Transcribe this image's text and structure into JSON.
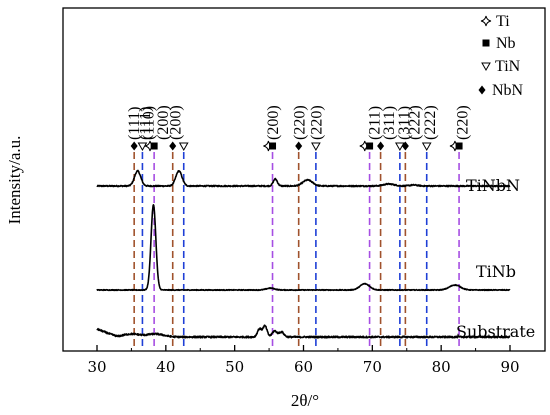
{
  "chart_data": {
    "type": "line",
    "xlabel": "2θ/°",
    "ylabel": "Intensity/a.u.",
    "xlim": [
      30,
      90
    ],
    "xticks": [
      30,
      40,
      50,
      60,
      70,
      80,
      90
    ],
    "legend": {
      "placement": "top-right",
      "entries": [
        {
          "symbol": "Ti",
          "label": "Ti"
        },
        {
          "symbol": "Nb",
          "label": "Nb"
        },
        {
          "symbol": "TiN",
          "label": "TiN"
        },
        {
          "symbol": "NbN",
          "label": "NbN"
        }
      ]
    },
    "reference_lines": [
      {
        "x": 35.4,
        "phase": "NbN",
        "color": "#a0522d"
      },
      {
        "x": 36.6,
        "phase": "TiN",
        "color": "#1f3fd6"
      },
      {
        "x": 38.3,
        "phase": "Nb",
        "color": "#a64ee3"
      },
      {
        "x": 41.0,
        "phase": "NbN",
        "color": "#a0522d"
      },
      {
        "x": 42.6,
        "phase": "TiN",
        "color": "#1f3fd6"
      },
      {
        "x": 55.5,
        "phase": "Nb",
        "color": "#a64ee3"
      },
      {
        "x": 59.3,
        "phase": "NbN",
        "color": "#a0522d"
      },
      {
        "x": 61.8,
        "phase": "TiN",
        "color": "#1f3fd6"
      },
      {
        "x": 69.6,
        "phase": "Nb",
        "color": "#a64ee3"
      },
      {
        "x": 71.2,
        "phase": "NbN",
        "color": "#a0522d"
      },
      {
        "x": 74.0,
        "phase": "TiN",
        "color": "#1f3fd6"
      },
      {
        "x": 74.8,
        "phase": "NbN",
        "color": "#a0522d"
      },
      {
        "x": 77.9,
        "phase": "TiN",
        "color": "#1f3fd6"
      },
      {
        "x": 82.6,
        "phase": "Nb",
        "color": "#a64ee3"
      }
    ],
    "markers": [
      {
        "x": 35.4,
        "symbol": "NbN"
      },
      {
        "x": 36.6,
        "symbol": "TiN"
      },
      {
        "x": 37.7,
        "symbol": "Ti"
      },
      {
        "x": 38.3,
        "symbol": "Nb"
      },
      {
        "x": 41.0,
        "symbol": "NbN"
      },
      {
        "x": 42.6,
        "symbol": "TiN"
      },
      {
        "x": 54.9,
        "symbol": "Ti"
      },
      {
        "x": 55.5,
        "symbol": "Nb"
      },
      {
        "x": 59.3,
        "symbol": "NbN"
      },
      {
        "x": 61.8,
        "symbol": "TiN"
      },
      {
        "x": 68.9,
        "symbol": "Ti"
      },
      {
        "x": 69.6,
        "symbol": "Nb"
      },
      {
        "x": 71.2,
        "symbol": "NbN"
      },
      {
        "x": 74.0,
        "symbol": "TiN"
      },
      {
        "x": 74.8,
        "symbol": "NbN"
      },
      {
        "x": 77.9,
        "symbol": "TiN"
      },
      {
        "x": 82.0,
        "symbol": "Ti"
      },
      {
        "x": 82.6,
        "symbol": "Nb"
      }
    ],
    "peak_labels": [
      {
        "x": 35.4,
        "text": "(111)"
      },
      {
        "x": 37.0,
        "text": "(111)"
      },
      {
        "x": 37.5,
        "text": "(110)"
      },
      {
        "x": 39.6,
        "text": "(200)"
      },
      {
        "x": 41.4,
        "text": "(200)"
      },
      {
        "x": 55.6,
        "text": "(200)"
      },
      {
        "x": 59.4,
        "text": "(220)"
      },
      {
        "x": 61.9,
        "text": "(220)"
      },
      {
        "x": 70.3,
        "text": "(211)"
      },
      {
        "x": 72.4,
        "text": "(311)"
      },
      {
        "x": 74.6,
        "text": "(311)"
      },
      {
        "x": 76.1,
        "text": "(222)"
      },
      {
        "x": 78.4,
        "text": "(222)"
      },
      {
        "x": 83.1,
        "text": "(220)"
      }
    ],
    "series": [
      {
        "name": "TiNbN",
        "baseline": 0.0,
        "noise": 0.6,
        "peaks": [
          {
            "x": 35.9,
            "height": 15,
            "width": 0.45
          },
          {
            "x": 41.9,
            "height": 15,
            "width": 0.45
          },
          {
            "x": 55.9,
            "height": 7,
            "width": 0.3
          },
          {
            "x": 60.6,
            "height": 6,
            "width": 0.7
          },
          {
            "x": 72.4,
            "height": 2,
            "width": 0.8
          },
          {
            "x": 76.0,
            "height": 1,
            "width": 0.6
          }
        ]
      },
      {
        "name": "TiNb",
        "baseline": 0.0,
        "noise": 0.3,
        "peaks": [
          {
            "x": 38.2,
            "height": 68,
            "width": 0.35
          },
          {
            "x": 55.2,
            "height": 1.5,
            "width": 0.6
          },
          {
            "x": 68.9,
            "height": 5,
            "width": 0.7
          },
          {
            "x": 82.0,
            "height": 4,
            "width": 0.8
          }
        ]
      },
      {
        "name": "Substrate",
        "baseline": 0.0,
        "noise": 0.8,
        "start_step": 8,
        "peaks": [
          {
            "x": 35.0,
            "height": 3,
            "width": 1.2
          },
          {
            "x": 38.5,
            "height": 3,
            "width": 1.2
          },
          {
            "x": 53.6,
            "height": 8,
            "width": 0.3
          },
          {
            "x": 54.4,
            "height": 11,
            "width": 0.3
          },
          {
            "x": 55.8,
            "height": 6,
            "width": 0.35
          },
          {
            "x": 56.8,
            "height": 5,
            "width": 0.35
          }
        ]
      }
    ]
  }
}
